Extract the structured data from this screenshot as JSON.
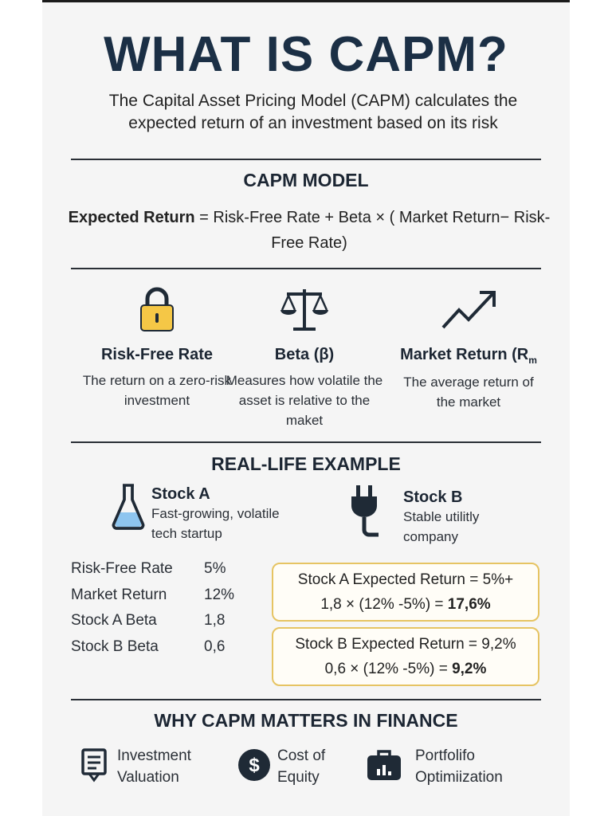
{
  "header": {
    "title": "WHAT IS CAPM?",
    "subtitle": "The Capital Asset Pricing Model (CAPM) calculates the expected return of an investment based on its risk"
  },
  "model": {
    "heading": "CAPM MODEL",
    "formula_bold": "Expected Return",
    "formula_rest": " = Risk-Free Rate + Beta × ( Market Return− Risk-Free Rate)"
  },
  "concepts": [
    {
      "icon": "lock-icon",
      "title": "Risk-Free Rate",
      "desc": "The return on a zero-risk investment"
    },
    {
      "icon": "balance-scale-icon",
      "title": "Beta (β)",
      "desc": "Measures how volatile the asset is relative to the maket"
    },
    {
      "icon": "trend-up-arrow-icon",
      "title": "Market Return (R",
      "title_sub": "m",
      "desc": "The average return of the market"
    }
  ],
  "example": {
    "heading": "REAL-LIFE EXAMPLE",
    "stock_a": {
      "name": "Stock A",
      "desc": "Fast-growing, volatile tech startup",
      "icon": "flask-icon"
    },
    "stock_b": {
      "name": "Stock B",
      "desc": "Stable utilitly company",
      "icon": "plug-icon"
    },
    "inputs": [
      {
        "label": "Risk-Free Rate",
        "value": "5%"
      },
      {
        "label": "Market Return",
        "value": "12%"
      },
      {
        "label": "Stock A Beta",
        "value": "1,8"
      },
      {
        "label": "Stock B Beta",
        "value": "0,6"
      }
    ],
    "calc_a": {
      "line1": "Stock A Expected Return = 5%+",
      "line2": "1,8 × (12% -5%) = ",
      "result": "17,6%"
    },
    "calc_b": {
      "line1": "Stock B Expected Return = 9,2%",
      "line2": "0,6 × (12% -5%) = ",
      "result": "9,2%"
    }
  },
  "why": {
    "heading": "WHY CAPM MATTERS IN FINANCE",
    "items": [
      {
        "icon": "document-valuation-icon",
        "label": "Investment Valuation"
      },
      {
        "icon": "dollar-coin-icon",
        "label": "Cost of Equity"
      },
      {
        "icon": "briefcase-chart-icon",
        "label": "Portfolifo Optimiization"
      }
    ]
  },
  "colors": {
    "title": "#1b2f45",
    "accent_gold": "#e6c463",
    "lock_yellow": "#f5c746",
    "flask_blue": "#8ec5ef"
  }
}
